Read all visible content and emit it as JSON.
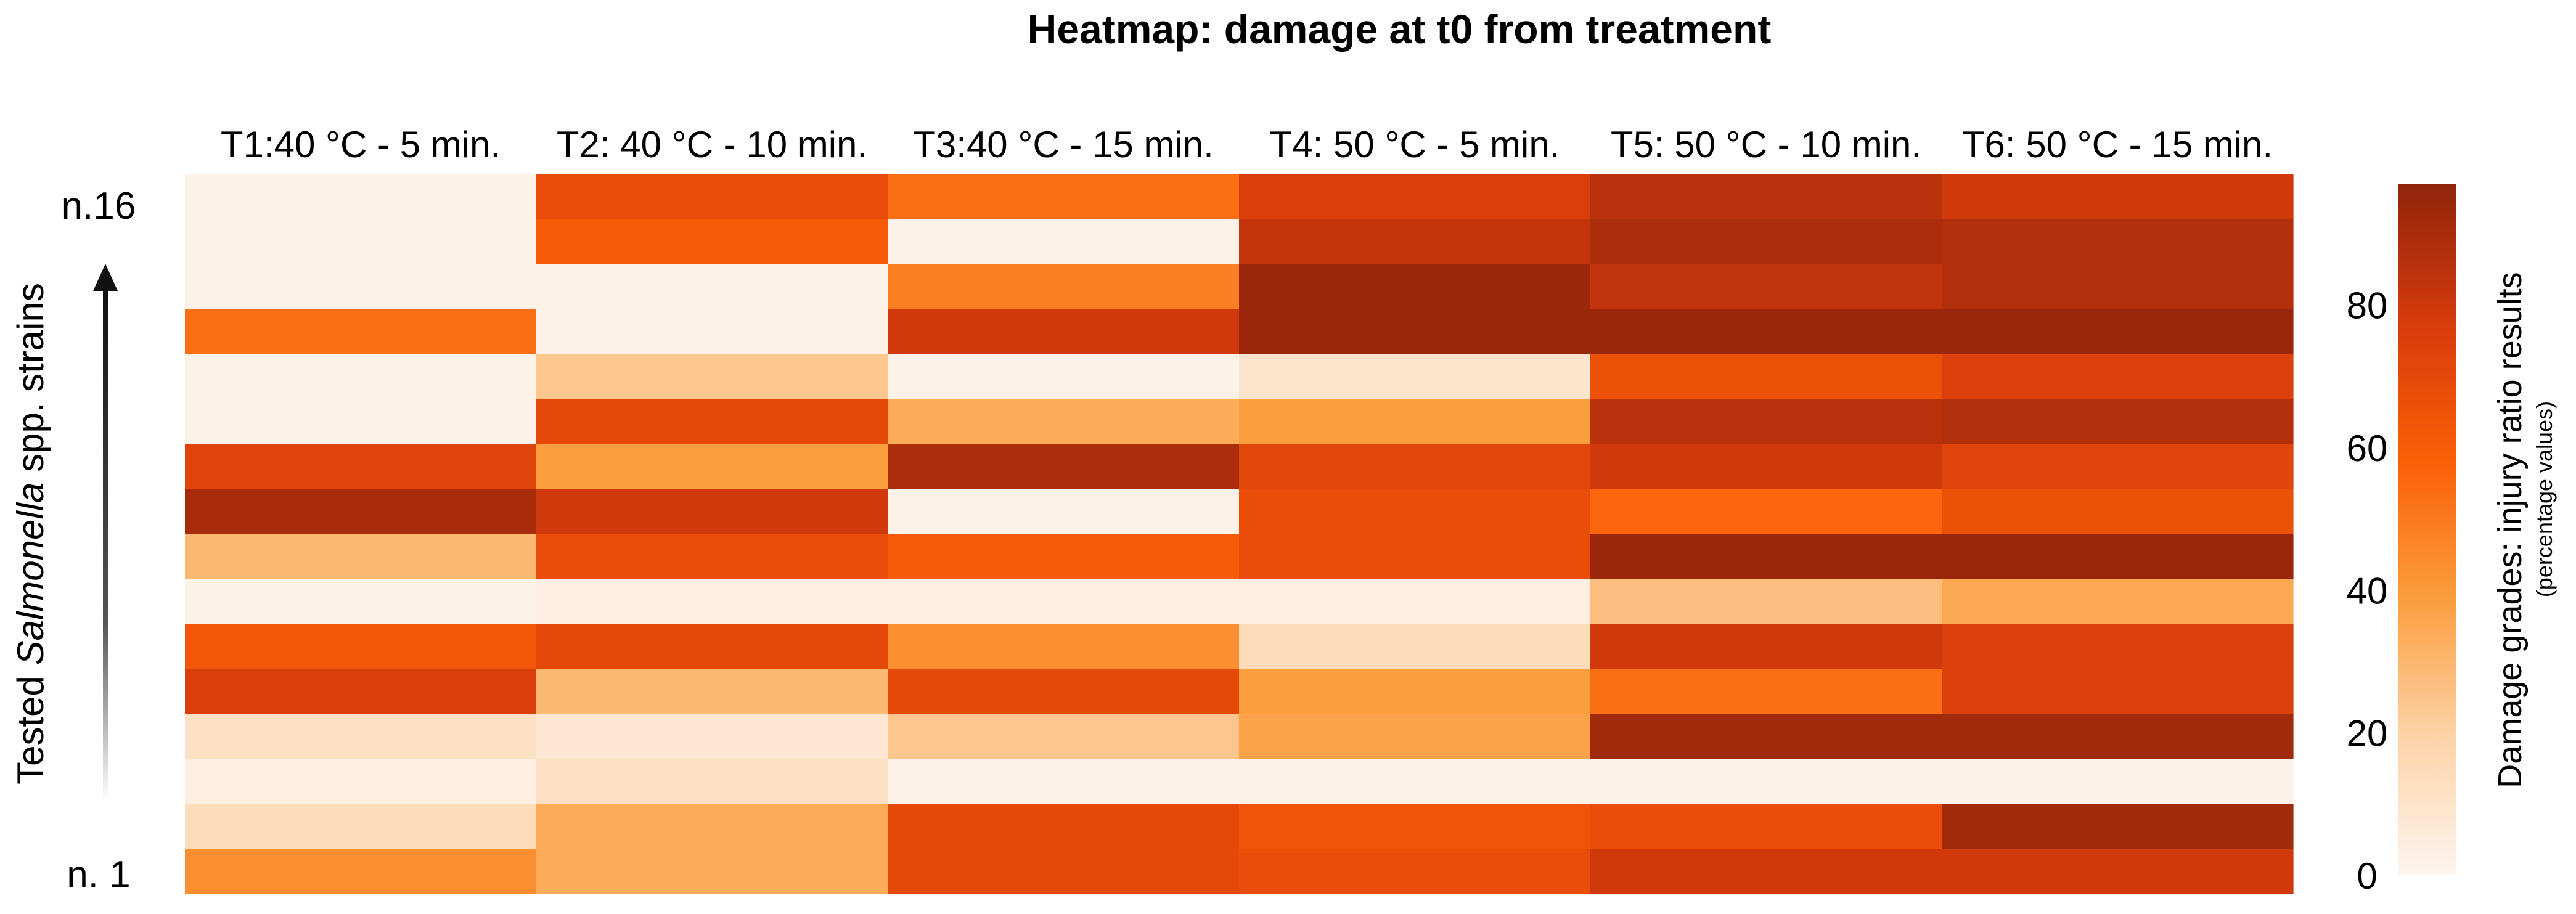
{
  "chart_data": {
    "type": "heatmap",
    "title": "Heatmap: damage at t0 from treatment",
    "columns": [
      "T1:40 °C - 5 min.",
      "T2: 40 °C - 10 min.",
      "T3:40 °C - 15 min.",
      "T4: 50 °C - 5 min.",
      "T5: 50 °C - 10 min.",
      "T6: 50 °C - 15 min."
    ],
    "row_top_label": "n.16",
    "row_bottom_label": "n. 1",
    "ylabel_prefix": "Tested ",
    "ylabel_italic": "Salmonella",
    "ylabel_suffix": " spp. strains",
    "values": [
      [
        2,
        70,
        55,
        78,
        88,
        82
      ],
      [
        2,
        62,
        2,
        85,
        92,
        90
      ],
      [
        2,
        2,
        50,
        97,
        86,
        90
      ],
      [
        55,
        2,
        82,
        97,
        97,
        97
      ],
      [
        2,
        25,
        2,
        10,
        68,
        77
      ],
      [
        2,
        72,
        35,
        40,
        88,
        90
      ],
      [
        75,
        40,
        92,
        74,
        82,
        75
      ],
      [
        93,
        82,
        2,
        70,
        58,
        68
      ],
      [
        30,
        70,
        62,
        70,
        97,
        97
      ],
      [
        2,
        4,
        4,
        4,
        28,
        36
      ],
      [
        65,
        72,
        45,
        15,
        82,
        77
      ],
      [
        78,
        30,
        72,
        40,
        55,
        77
      ],
      [
        12,
        8,
        25,
        38,
        95,
        95
      ],
      [
        4,
        12,
        2,
        2,
        2,
        2
      ],
      [
        15,
        35,
        72,
        66,
        70,
        95
      ],
      [
        45,
        35,
        72,
        70,
        82,
        82
      ]
    ],
    "value_range": [
      0,
      100
    ],
    "colorbar": {
      "ticks": [
        "0",
        "20",
        "40",
        "60",
        "80"
      ],
      "tick_values": [
        0,
        20,
        40,
        60,
        80
      ],
      "label": "Damage grades:  injury ratio results",
      "sublabel": "(percentage values)",
      "stops": [
        "#fdf5ef",
        "#fdd3a8",
        "#fb9e3e",
        "#fb5f06",
        "#d63b0c",
        "#8f240b"
      ]
    }
  }
}
